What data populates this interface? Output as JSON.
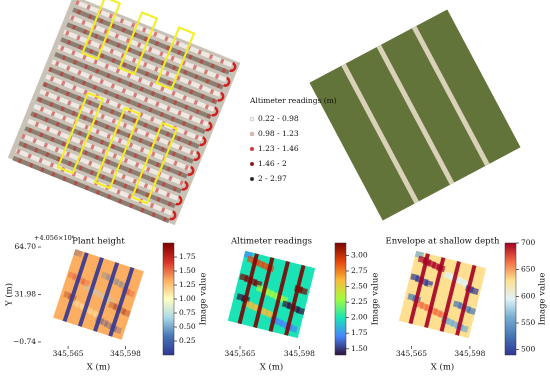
{
  "legend": {
    "title": "Altimeter readings (m)",
    "items": [
      {
        "label": "0.22 - 0.98",
        "color": "#f4f4f4"
      },
      {
        "label": "0.98 - 1.23",
        "color": "#f2b8b8"
      },
      {
        "label": "1.23 - 1.46",
        "color": "#e03030"
      },
      {
        "label": "1.46 - 2",
        "color": "#901010"
      },
      {
        "label": "2 - 2.97",
        "color": "#222222"
      }
    ]
  },
  "panels": [
    {
      "title": "Plant height",
      "offset_text": "+4.056×10⁶",
      "x_label": "X (m)",
      "y_label": "Y (m)",
      "colorbar_label": "Image value",
      "xlim": [
        345550,
        345615
      ],
      "xticks": [
        {
          "value": 345565,
          "label": "345,565"
        },
        {
          "value": 345598,
          "label": "345,598"
        }
      ],
      "ylim": [
        -0.74,
        64.7
      ],
      "yticks": [
        {
          "value": -0.74,
          "label": "−0.74"
        },
        31.98,
        {
          "value": 64.7,
          "label": "64.70"
        }
      ],
      "clim": [
        0,
        2
      ],
      "cticks": [
        0.25,
        {
          "value": 0.5,
          "label": "0.50"
        },
        0.75,
        {
          "value": 1,
          "label": "1.00"
        },
        1.25,
        {
          "value": 1.5,
          "label": "1.50"
        },
        1.75
      ],
      "colormap": [
        "#313695",
        "#4575b4",
        "#abd9e9",
        "#ffffbf",
        "#fdae61",
        "#d73027",
        "#7f0000"
      ]
    },
    {
      "title": "Altimeter readings",
      "x_label": "X (m)",
      "colorbar_label": "Image value",
      "xlim": [
        345550,
        345615
      ],
      "xticks": [
        {
          "value": 345565,
          "label": "345,565"
        },
        {
          "value": 345598,
          "label": "345,598"
        }
      ],
      "clim": [
        1.4,
        3.2
      ],
      "cticks": [
        {
          "value": 1.5,
          "label": "1.50"
        },
        1.75,
        {
          "value": 2,
          "label": "2.00"
        },
        2.25,
        {
          "value": 2.5,
          "label": "2.50"
        },
        2.75,
        {
          "value": 3,
          "label": "3.00"
        }
      ],
      "colormap": [
        "#30123b",
        "#4686fb",
        "#1ae4b6",
        "#a2fc3c",
        "#fabb39",
        "#e4460a",
        "#7a0403"
      ]
    },
    {
      "title": "Envelope at shallow depth",
      "x_label": "X (m)",
      "colorbar_label": "Image value",
      "xlim": [
        345550,
        345615
      ],
      "xticks": [
        {
          "value": 345565,
          "label": "345,565"
        },
        {
          "value": 345598,
          "label": "345,598"
        }
      ],
      "clim": [
        490,
        700
      ],
      "cticks": [
        500,
        550,
        600,
        650,
        700
      ],
      "colormap": [
        "#313695",
        "#4575b4",
        "#74add1",
        "#e0f3f8",
        "#fee090",
        "#f46d43",
        "#a50026"
      ]
    }
  ]
}
